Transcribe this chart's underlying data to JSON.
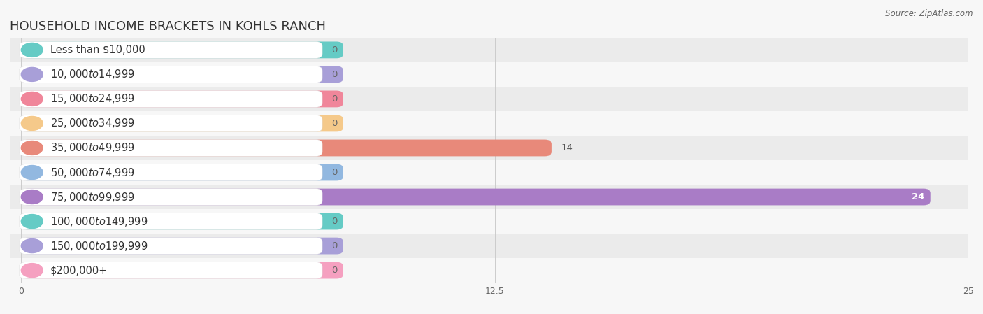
{
  "title": "HOUSEHOLD INCOME BRACKETS IN KOHLS RANCH",
  "source": "Source: ZipAtlas.com",
  "categories": [
    "Less than $10,000",
    "$10,000 to $14,999",
    "$15,000 to $24,999",
    "$25,000 to $34,999",
    "$35,000 to $49,999",
    "$50,000 to $74,999",
    "$75,000 to $99,999",
    "$100,000 to $149,999",
    "$150,000 to $199,999",
    "$200,000+"
  ],
  "values": [
    0,
    0,
    0,
    0,
    14,
    0,
    24,
    0,
    0,
    0
  ],
  "bar_colors": [
    "#65cbc5",
    "#a89fd8",
    "#f0869a",
    "#f5c98a",
    "#e8897a",
    "#92b8e0",
    "#a97cc6",
    "#65cbc5",
    "#a89fd8",
    "#f5a0c0"
  ],
  "background_color": "#f7f7f7",
  "xlim_max": 25,
  "xticks": [
    0,
    12.5,
    25
  ],
  "title_fontsize": 13,
  "label_fontsize": 10.5,
  "value_fontsize": 9.5,
  "bar_height": 0.68,
  "full_bar_value": 25
}
